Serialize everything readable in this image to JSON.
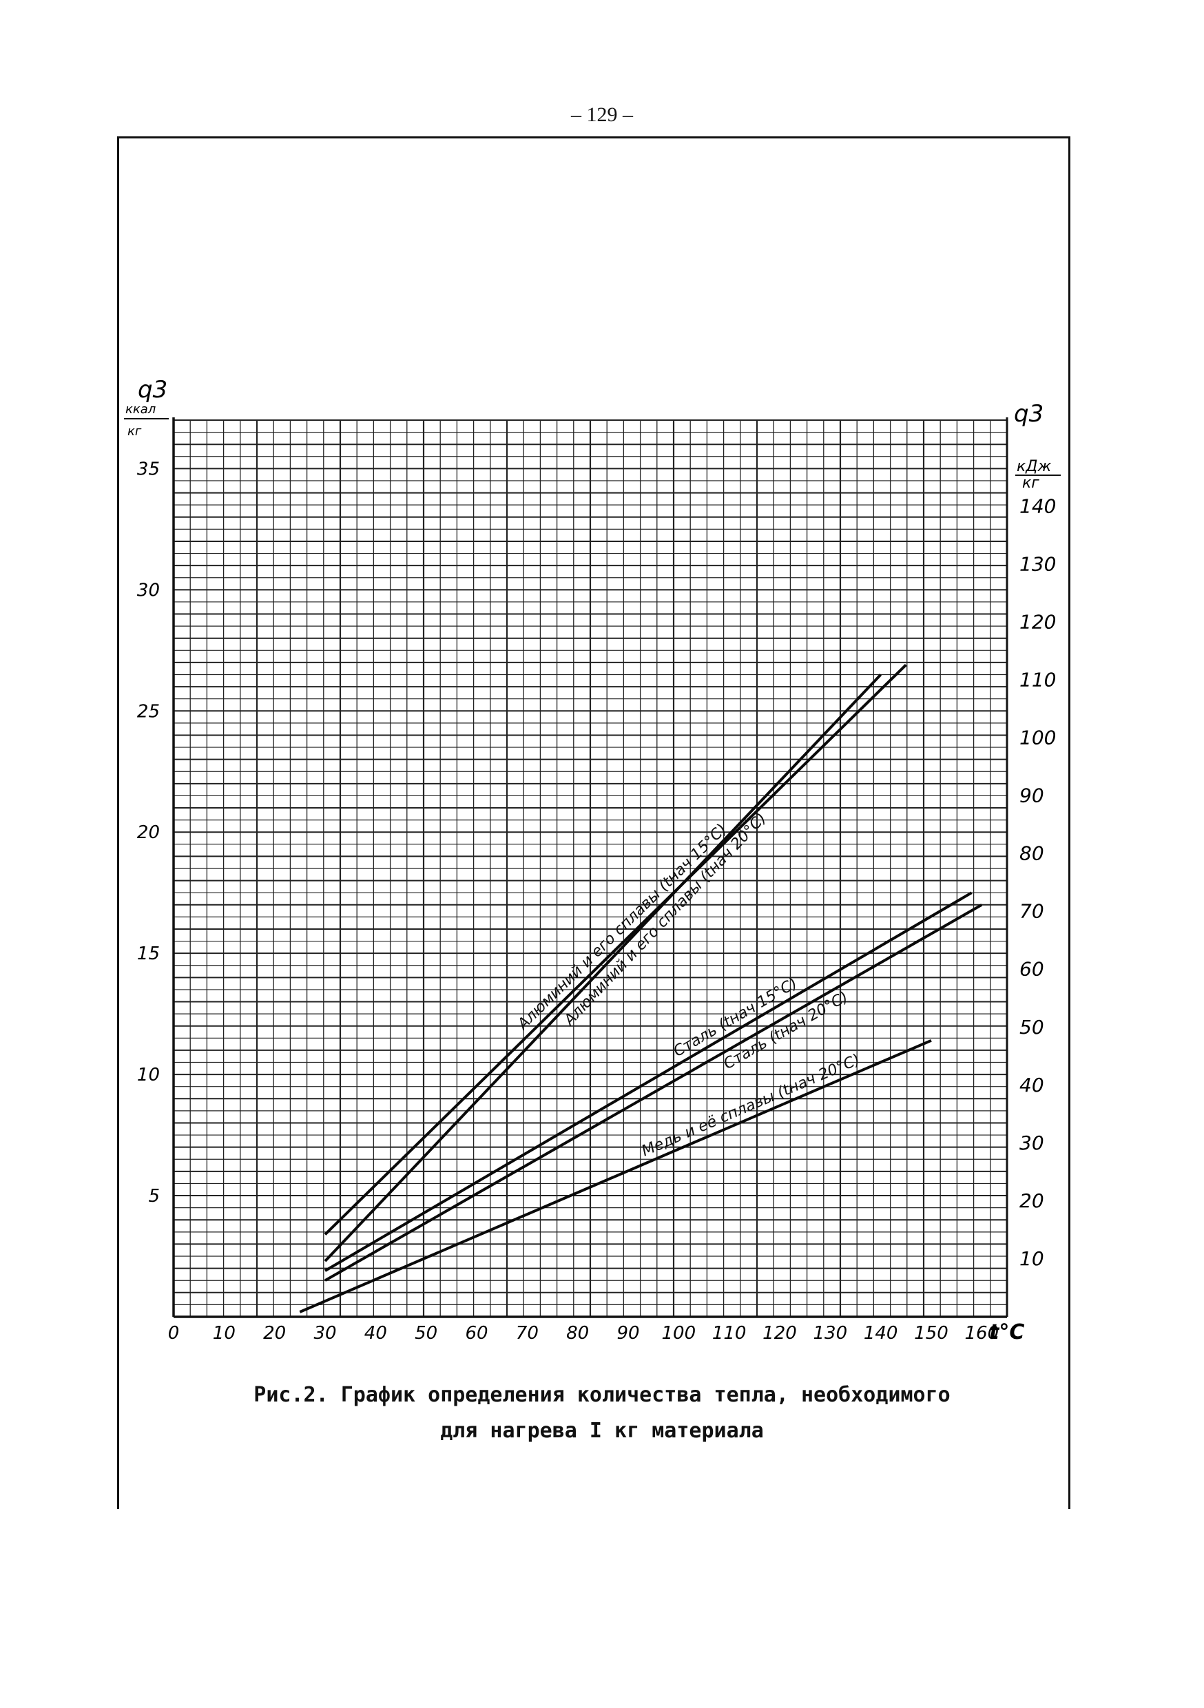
{
  "page": {
    "number": "– 129 –"
  },
  "caption": {
    "line1": "Рис.2. График определения количества тепла, необходимого",
    "line2": "для нагрева I кг материала"
  },
  "chart_data": {
    "type": "line",
    "title": "",
    "xlabel": "t°C",
    "ylabel_left": {
      "symbol": "q3",
      "unit_num": "ккал",
      "unit_den": "кг"
    },
    "ylabel_right": {
      "symbol": "q3",
      "unit_num": "кДж",
      "unit_den": "кг"
    },
    "xlim": [
      0,
      165
    ],
    "ylim": [
      0,
      37
    ],
    "grid": true,
    "x_ticks": [
      "0",
      "10",
      "20",
      "30",
      "40",
      "50",
      "60",
      "70",
      "80",
      "90",
      "100",
      "110",
      "120",
      "130",
      "140",
      "150",
      "160"
    ],
    "y_left_ticks": [
      "5",
      "10",
      "15",
      "20",
      "25",
      "30",
      "35"
    ],
    "y_right_ticks": [
      "10",
      "20",
      "30",
      "40",
      "50",
      "60",
      "70",
      "80",
      "90",
      "100",
      "110",
      "120",
      "130",
      "140"
    ],
    "series": [
      {
        "name": "Алюминий и его сплавы (tнач 15°С)",
        "x": [
          30,
          145
        ],
        "y": [
          3.4,
          26.9
        ]
      },
      {
        "name": "Алюминий и его сплавы (tнач 20°С)",
        "x": [
          30,
          140
        ],
        "y": [
          2.3,
          26.5
        ]
      },
      {
        "name": "Сталь (tнач 15°С)",
        "x": [
          30,
          158
        ],
        "y": [
          1.9,
          17.5
        ]
      },
      {
        "name": "Сталь (tнач 20°С)",
        "x": [
          30,
          160
        ],
        "y": [
          1.5,
          17.0
        ]
      },
      {
        "name": "Медь и её сплавы (tнач 20°С)",
        "x": [
          25,
          150
        ],
        "y": [
          0.2,
          11.4
        ]
      }
    ]
  }
}
